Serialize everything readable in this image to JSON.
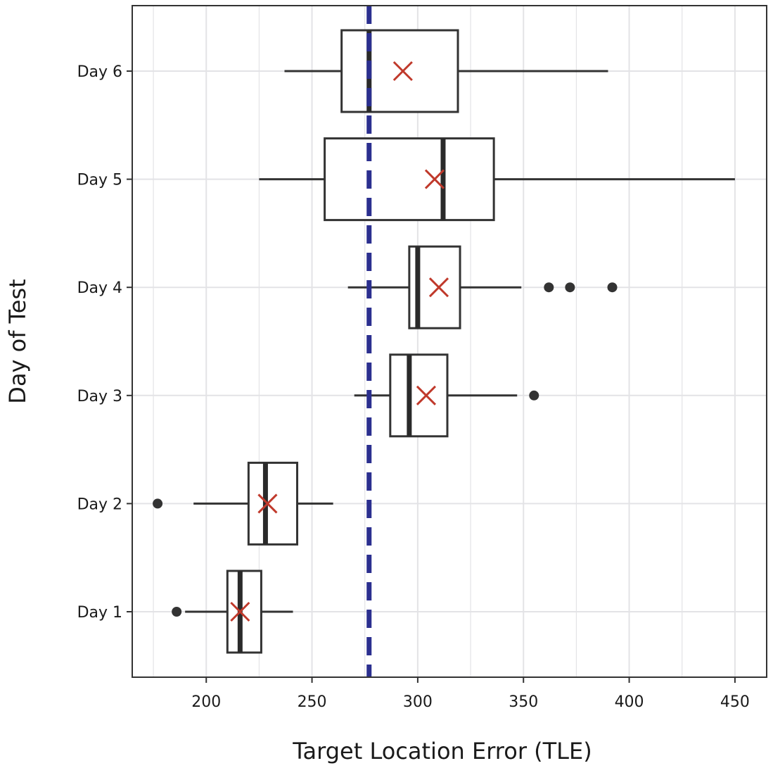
{
  "chart_data": {
    "type": "boxplot",
    "orientation": "horizontal",
    "title": "",
    "xlabel": "Target Location Error (TLE)",
    "ylabel": "Day of Test",
    "xlim": [
      165,
      465
    ],
    "x_ticks": [
      200,
      250,
      300,
      350,
      400,
      450
    ],
    "grid": true,
    "legend": "none",
    "reference_line": {
      "x": 277,
      "style": "dashed",
      "color": "#2b2f8f"
    },
    "colors": {
      "box": "#333333",
      "mean_marker": "#c0392b",
      "outlier": "#333333",
      "grid": "#e3e3e6"
    },
    "categories": [
      "Day 1",
      "Day 2",
      "Day 3",
      "Day 4",
      "Day 5",
      "Day 6"
    ],
    "series": [
      {
        "category": "Day 1",
        "whisker_low": 190,
        "q1": 210,
        "median": 216,
        "q3": 226,
        "whisker_high": 241,
        "mean": 216,
        "outliers": [
          186
        ]
      },
      {
        "category": "Day 2",
        "whisker_low": 194,
        "q1": 220,
        "median": 228,
        "q3": 243,
        "whisker_high": 260,
        "mean": 229,
        "outliers": [
          177
        ]
      },
      {
        "category": "Day 3",
        "whisker_low": 270,
        "q1": 287,
        "median": 296,
        "q3": 314,
        "whisker_high": 347,
        "mean": 304,
        "outliers": [
          355
        ]
      },
      {
        "category": "Day 4",
        "whisker_low": 267,
        "q1": 296,
        "median": 300,
        "q3": 320,
        "whisker_high": 349,
        "mean": 310,
        "outliers": [
          362,
          372,
          392
        ]
      },
      {
        "category": "Day 5",
        "whisker_low": 225,
        "q1": 256,
        "median": 312,
        "q3": 336,
        "whisker_high": 450,
        "mean": 308,
        "outliers": []
      },
      {
        "category": "Day 6",
        "whisker_low": 237,
        "q1": 264,
        "median": 277,
        "q3": 319,
        "whisker_high": 390,
        "mean": 293,
        "outliers": []
      }
    ]
  }
}
